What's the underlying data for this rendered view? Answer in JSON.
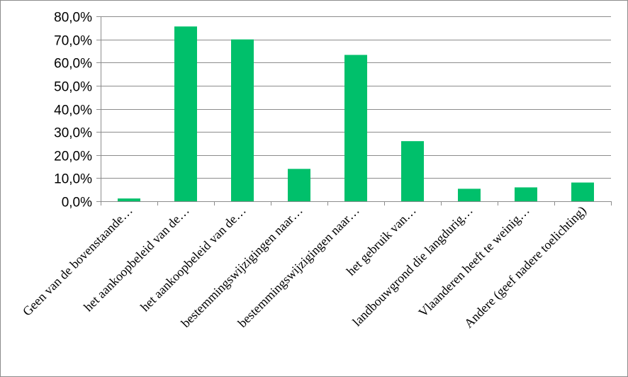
{
  "chart_data": {
    "type": "bar",
    "categories": [
      "Geen van de bovenstaande…",
      "het aankoopbeleid van de…",
      "het aankoopbeleid van de…",
      "bestemmingswijzigingen naar…",
      "bestemmingswijzigingen naar…",
      "het gebruik van…",
      "landbouwgrond die langdurig…",
      "Vlaanderen heeft te weinig…",
      "Andere (geef nadere toelichting)"
    ],
    "values": [
      1.2,
      75.6,
      70.0,
      14.0,
      63.3,
      26.0,
      5.4,
      6.0,
      8.1
    ],
    "ylim": [
      0,
      80
    ],
    "yticks": [
      0,
      10,
      20,
      30,
      40,
      50,
      60,
      70,
      80
    ],
    "ytick_labels": [
      "0,0%",
      "10,0%",
      "20,0%",
      "30,0%",
      "40,0%",
      "50,0%",
      "60,0%",
      "70,0%",
      "80,0%"
    ],
    "title": "",
    "xlabel": "",
    "ylabel": "",
    "grid": true,
    "legend": "none",
    "bar_color": "#00c06b",
    "grid_color": "#8c8c8c"
  }
}
